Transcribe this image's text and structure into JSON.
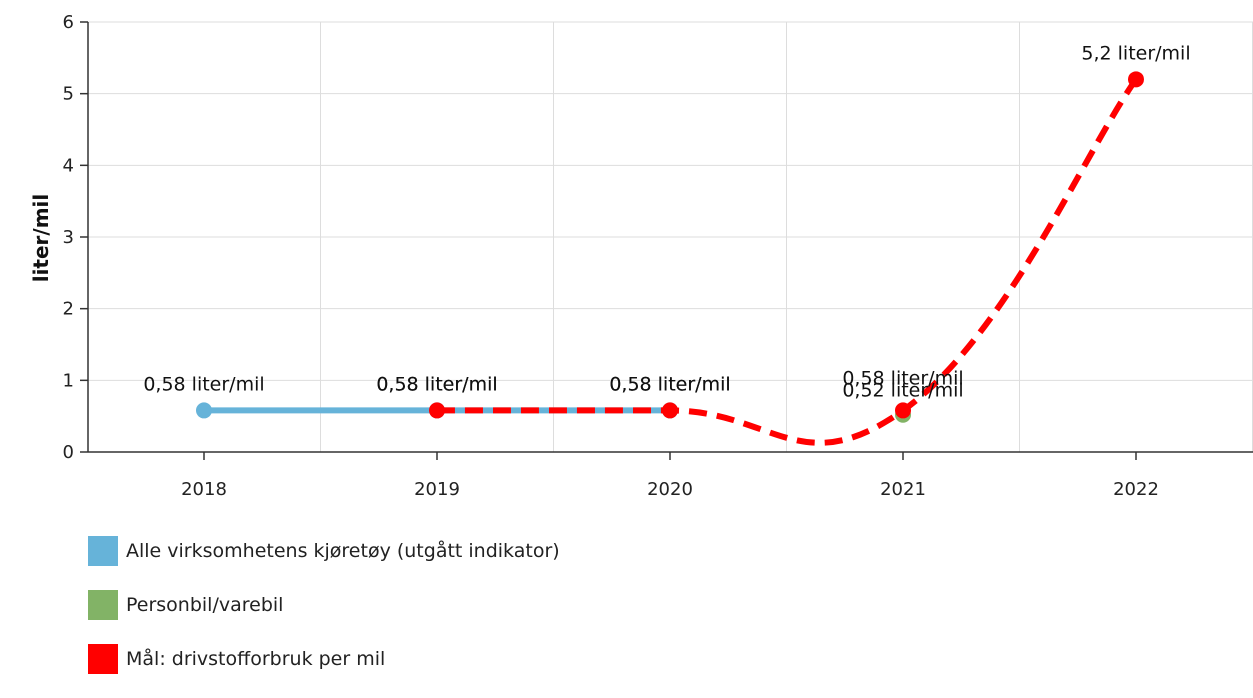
{
  "chart_data": {
    "type": "line",
    "categories": [
      "2018",
      "2019",
      "2020",
      "2021",
      "2022"
    ],
    "ylabel": "liter/mil",
    "xlabel": "",
    "ylim": [
      0,
      6
    ],
    "yticks": [
      "0",
      "1",
      "2",
      "3",
      "4",
      "5",
      "6"
    ],
    "grid": true,
    "legend_position": "bottom-left",
    "series": [
      {
        "name": "Alle virksomhetens kjøretøy (utgått indikator)",
        "color": "#66b3d9",
        "style": "solid",
        "values": [
          0.58,
          0.58,
          0.58,
          null,
          null
        ],
        "labels": [
          "0,58 liter/mil",
          "0,58 liter/mil",
          "0,58 liter/mil",
          "",
          ""
        ]
      },
      {
        "name": "Personbil/varebil",
        "color": "#82b366",
        "style": "solid",
        "values": [
          null,
          null,
          null,
          0.52,
          null
        ],
        "labels": [
          "",
          "",
          "",
          "0,52 liter/mil",
          ""
        ]
      },
      {
        "name": "Mål: drivstofforbruk per mil",
        "color": "#ff0000",
        "style": "dashed",
        "values": [
          null,
          0.58,
          0.58,
          0.58,
          5.2
        ],
        "labels": [
          "",
          "0,58 liter/mil",
          "0,58 liter/mil",
          "0,58 liter/mil",
          "5,2 liter/mil"
        ]
      }
    ]
  }
}
